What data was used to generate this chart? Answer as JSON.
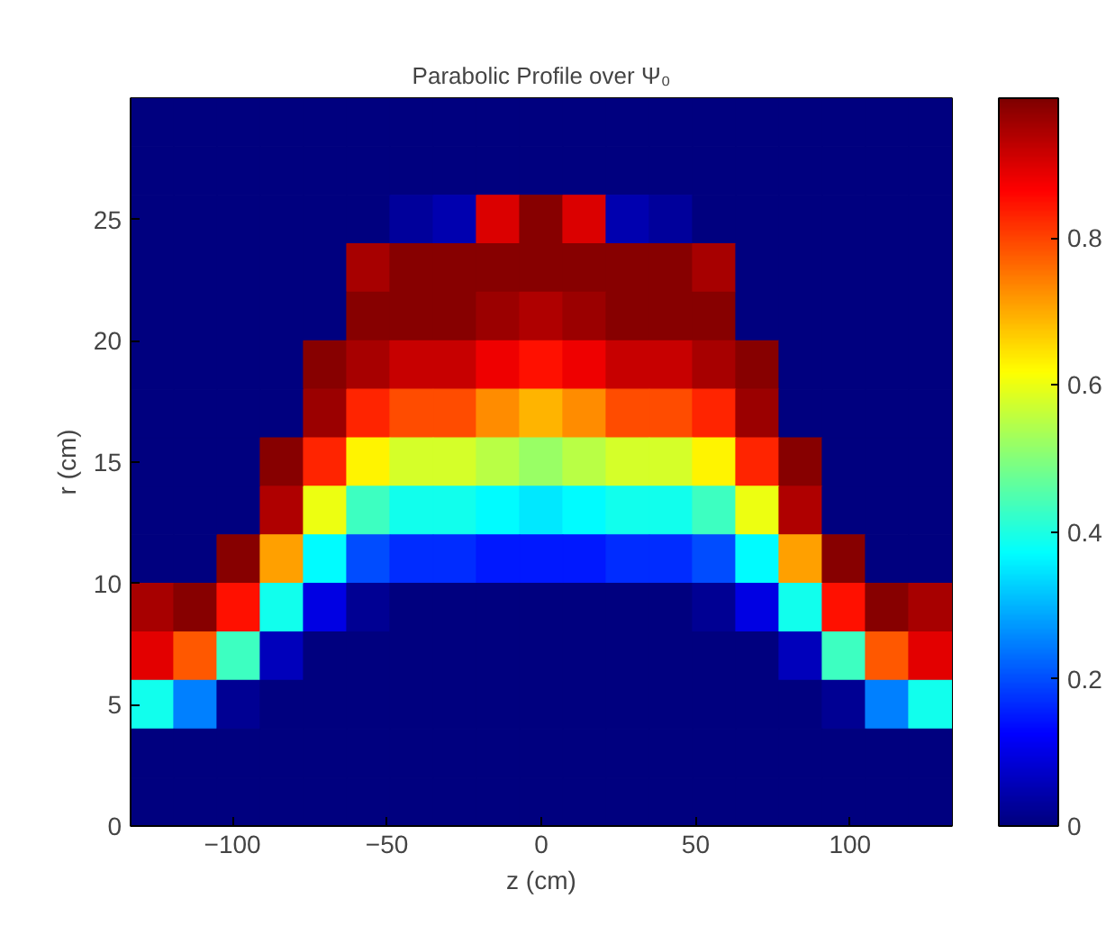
{
  "chart_data": {
    "type": "heatmap",
    "title": "Parabolic Profile over Ψ₀",
    "xlabel": "z (cm)",
    "ylabel": "r (cm)",
    "x": [
      -126,
      -112,
      -98,
      -84,
      -70,
      -56,
      -42,
      -28,
      -14,
      0,
      14,
      28,
      42,
      56,
      70,
      84,
      98,
      112,
      126
    ],
    "y": [
      29,
      27,
      25,
      23,
      21,
      19,
      17,
      15,
      13,
      11,
      9,
      7,
      5,
      3,
      1
    ],
    "cells": [
      [
        0,
        0,
        0,
        0,
        0,
        0,
        0,
        0,
        0,
        0,
        0,
        0,
        0,
        0,
        0,
        0,
        0,
        0,
        0
      ],
      [
        0,
        0,
        0,
        0,
        0,
        0,
        0,
        0,
        0,
        0,
        0,
        0,
        0,
        0,
        0,
        0,
        0,
        0,
        0
      ],
      [
        0,
        0,
        0,
        0,
        0,
        0,
        0.03,
        0.05,
        0.9,
        0.98,
        0.9,
        0.05,
        0.03,
        0,
        0,
        0,
        0,
        0,
        0
      ],
      [
        0,
        0,
        0,
        0,
        0,
        0.95,
        0.98,
        0.98,
        0.98,
        0.98,
        0.98,
        0.98,
        0.98,
        0.95,
        0,
        0,
        0,
        0,
        0
      ],
      [
        0,
        0,
        0,
        0,
        0,
        0.98,
        0.98,
        0.98,
        0.96,
        0.94,
        0.96,
        0.98,
        0.98,
        0.98,
        0,
        0,
        0,
        0,
        0
      ],
      [
        0,
        0,
        0,
        0,
        0.98,
        0.95,
        0.92,
        0.92,
        0.88,
        0.85,
        0.88,
        0.92,
        0.92,
        0.95,
        0.98,
        0,
        0,
        0,
        0
      ],
      [
        0,
        0,
        0,
        0,
        0.96,
        0.83,
        0.79,
        0.79,
        0.73,
        0.69,
        0.73,
        0.79,
        0.79,
        0.83,
        0.96,
        0,
        0,
        0,
        0
      ],
      [
        0,
        0,
        0,
        0.98,
        0.83,
        0.63,
        0.58,
        0.58,
        0.55,
        0.52,
        0.55,
        0.58,
        0.58,
        0.63,
        0.83,
        0.98,
        0,
        0,
        0
      ],
      [
        0,
        0,
        0,
        0.94,
        0.6,
        0.43,
        0.39,
        0.39,
        0.37,
        0.35,
        0.37,
        0.39,
        0.39,
        0.43,
        0.6,
        0.94,
        0,
        0,
        0
      ],
      [
        0,
        0,
        0.98,
        0.71,
        0.37,
        0.2,
        0.17,
        0.17,
        0.15,
        0.15,
        0.15,
        0.17,
        0.17,
        0.2,
        0.37,
        0.71,
        0.98,
        0,
        0
      ],
      [
        0.95,
        0.98,
        0.85,
        0.39,
        0.1,
        0.02,
        0,
        0,
        0,
        0,
        0,
        0,
        0,
        0.02,
        0.1,
        0.39,
        0.85,
        0.98,
        0.95
      ],
      [
        0.89,
        0.78,
        0.43,
        0.06,
        0,
        0,
        0,
        0,
        0,
        0,
        0,
        0,
        0,
        0,
        0,
        0.06,
        0.43,
        0.78,
        0.89
      ],
      [
        0.39,
        0.25,
        0.02,
        0,
        0,
        0,
        0,
        0,
        0,
        0,
        0,
        0,
        0,
        0,
        0,
        0,
        0.02,
        0.25,
        0.39
      ],
      [
        0,
        0,
        0,
        0,
        0,
        0,
        0,
        0,
        0,
        0,
        0,
        0,
        0,
        0,
        0,
        0,
        0,
        0,
        0
      ],
      [
        0,
        0,
        0,
        0,
        0,
        0,
        0,
        0,
        0,
        0,
        0,
        0,
        0,
        0,
        0,
        0,
        0,
        0,
        0
      ]
    ],
    "xlim": [
      -133,
      133
    ],
    "ylim": [
      0,
      30
    ],
    "xticks": [
      -100,
      -50,
      0,
      50,
      100
    ],
    "yticks": [
      0,
      5,
      10,
      15,
      20,
      25
    ],
    "clim": [
      0,
      0.99
    ],
    "cticks": [
      0,
      0.2,
      0.4,
      0.6,
      0.8
    ],
    "legend": false
  }
}
